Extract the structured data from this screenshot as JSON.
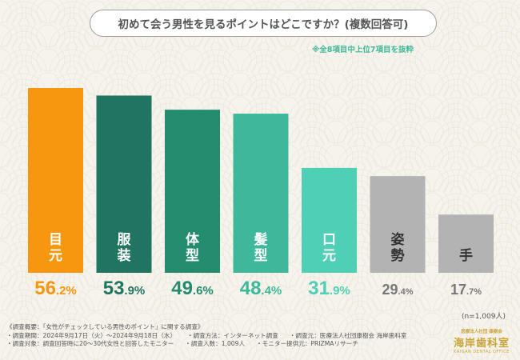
{
  "title": "初めて会う男性を見るポイントはどこですか？(複数回答可)",
  "subtitle": "※全8項目中上位7項目を抜粋",
  "sample_size": "(n=1,009人)",
  "footer": {
    "line1": "《調査概要：「女性がチェックしている男性のポイント」に関する調査》",
    "period": "・調査期間：2024年9月17日（火）〜2024年9月18日（水）",
    "method": "・調査方法：インターネット調査",
    "source": "・調査元：医療法人社団康樹会 海岸歯科室",
    "target": "・調査対象：調査回答時に20〜30代女性と回答したモニター",
    "respondents": "・調査人数：1,009人",
    "provider": "・モニター提供元：PRIZMAリサーチ"
  },
  "logo": {
    "top": "医療法人社団 康樹会",
    "main": "海岸歯科室",
    "sub": "KAIGAN DENTAL OFFICE"
  },
  "chart_data": {
    "type": "bar",
    "categories": [
      "目元",
      "服装",
      "体型",
      "髪型",
      "口元",
      "姿勢",
      "手"
    ],
    "values": [
      56.2,
      53.9,
      49.6,
      48.4,
      31.9,
      29.4,
      17.7
    ],
    "unit": "%",
    "title": "初めて会う男性を見るポイントはどこですか？(複数回答可)",
    "colors": [
      "#f7960f",
      "#1f7560",
      "#238c6e",
      "#3db89a",
      "#4fcfb6",
      "#b3b3b3",
      "#b3b3b3"
    ],
    "value_colors": [
      "#f7960f",
      "#1f7560",
      "#238c6e",
      "#3db89a",
      "#4fcfb6",
      "#777777",
      "#777777"
    ],
    "grid": false,
    "legend": "none"
  }
}
